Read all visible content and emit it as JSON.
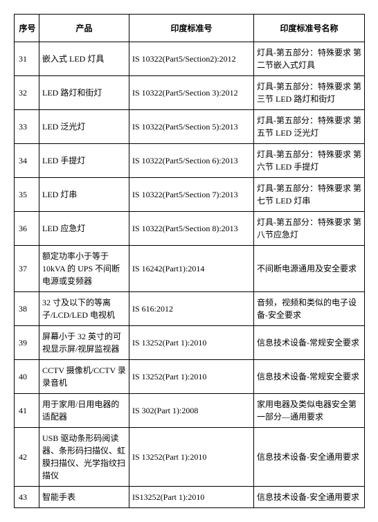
{
  "table": {
    "headers": {
      "seq": "序号",
      "product": "产品",
      "standard": "印度标准号",
      "name": "印度标准号名称"
    },
    "rows": [
      {
        "seq": "31",
        "product": "嵌入式 LED 灯具",
        "standard": "IS 10322(Part5/Section2):2012",
        "name": "灯具-第五部分：特殊要求 第二节嵌入式灯具"
      },
      {
        "seq": "32",
        "product": "LED 路灯和街灯",
        "standard": "IS 10322(Part5/Section 3):2012",
        "name": "灯具-第五部分：特殊要求 第三节 LED 路灯和街灯"
      },
      {
        "seq": "33",
        "product": "LED 泛光灯",
        "standard": "IS 10322(Part5/Section 5):2013",
        "name": "灯具-第五部分：特殊要求 第五节 LED 泛光灯"
      },
      {
        "seq": "34",
        "product": "LED 手提灯",
        "standard": "IS 10322(Part5/Section 6):2013",
        "name": "灯具-第五部分：特殊要求 第六节 LED 手提灯"
      },
      {
        "seq": "35",
        "product": "LED 灯串",
        "standard": "IS 10322(Part5/Section 7):2013",
        "name": "灯具-第五部分：特殊要求 第七节 LED 灯串"
      },
      {
        "seq": "36",
        "product": "LED 应急灯",
        "standard": "IS 10322(Part5/Section 8):2013",
        "name": "灯具-第五部分：特殊要求 第八节应急灯"
      },
      {
        "seq": "37",
        "product": "额定功率小于等于 10kVA 的 UPS 不间断电源或变频器",
        "standard": "IS 16242(Part1):2014",
        "name": "不间断电源通用及安全要求"
      },
      {
        "seq": "38",
        "product": "32 寸及以下的等离子/LCD/LED 电视机",
        "standard": "IS 616:2012",
        "name": "音频，视频和类似的电子设备-安全要求"
      },
      {
        "seq": "39",
        "product": "屏幕小于 32 英寸的可视显示屏/视屏监视器",
        "standard": "IS 13252(Part 1):2010",
        "name": "信息技术设备-常规安全要求"
      },
      {
        "seq": "40",
        "product": "CCTV 摄像机/CCTV 录录音机",
        "standard": "IS 13252(Part 1):2010",
        "name": "信息技术设备-常规安全要求"
      },
      {
        "seq": "41",
        "product": "用于家用/日用电器的适配器",
        "standard": "IS 302(Part 1):2008",
        "name": "家用电器及类似电器安全第一部分—通用要求"
      },
      {
        "seq": "42",
        "product": "USB 驱动条形码阅读器、条形码扫描仪、虹膜扫描仪、光学指纹扫描仪",
        "standard": "IS 13252(Part 1):2010",
        "name": "信息技术设备-安全通用要求"
      },
      {
        "seq": "43",
        "product": "智能手表",
        "standard": "IS13252(Part 1):2010",
        "name": "信息技术设备-安全通用要求"
      }
    ]
  }
}
